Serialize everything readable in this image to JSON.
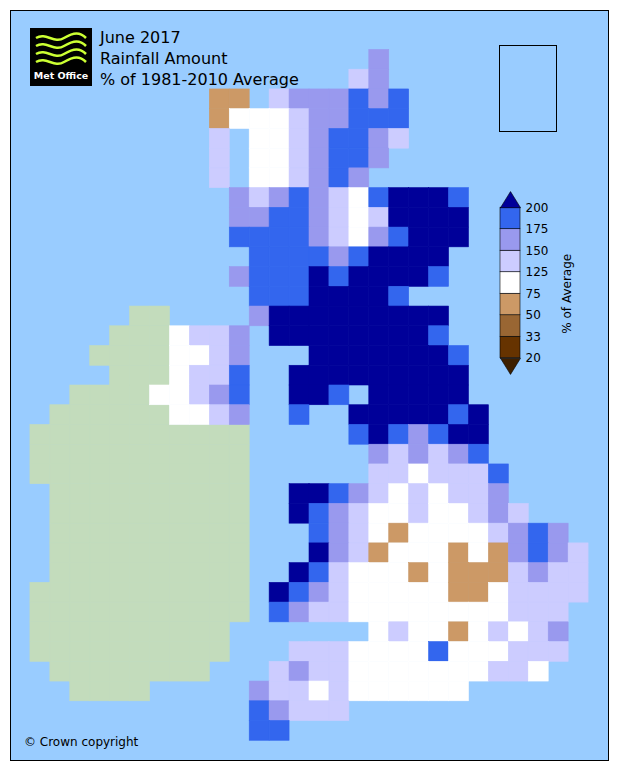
{
  "chart_data": {
    "type": "heatmap",
    "title": "June 2017",
    "subtitle": [
      "Rainfall Amount",
      "% of 1981-2010 Average"
    ],
    "logo": "Met Office",
    "credit": "© Crown copyright",
    "xlim": [
      0,
      30
    ],
    "ylim": [
      0,
      38
    ],
    "tick_labels": false,
    "colorbar": {
      "label": "% of Average",
      "ticks": [
        20,
        33,
        50,
        75,
        125,
        150,
        175,
        200
      ],
      "colors": [
        "#3d1f00",
        "#663300",
        "#996633",
        "#cc9966",
        "#ffffff",
        "#ccccff",
        "#9999ee",
        "#3366ee",
        "#000099"
      ]
    },
    "cells": [
      [
        2,
        18,
        [
          160
        ]
      ],
      [
        3,
        17,
        [
          135,
          160
        ]
      ],
      [
        4,
        10,
        [
          60,
          60,
          null,
          135,
          160,
          160,
          160,
          185,
          160,
          185
        ]
      ],
      [
        5,
        10,
        [
          60,
          100,
          100,
          100,
          135,
          160,
          160,
          185,
          185,
          185
        ]
      ],
      [
        6,
        10,
        [
          135,
          null,
          100,
          100,
          135,
          160,
          185,
          185,
          160,
          135
        ]
      ],
      [
        7,
        10,
        [
          135,
          null,
          100,
          100,
          135,
          160,
          185,
          185,
          160
        ]
      ],
      [
        8,
        10,
        [
          135,
          null,
          100,
          100,
          135,
          160,
          185,
          160
        ]
      ],
      [
        9,
        11,
        [
          160,
          135,
          160,
          185,
          160,
          135,
          100,
          185,
          210,
          210,
          210,
          185
        ]
      ],
      [
        10,
        11,
        [
          160,
          160,
          185,
          185,
          160,
          135,
          100,
          135,
          210,
          210,
          210,
          210
        ]
      ],
      [
        11,
        11,
        [
          185,
          185,
          185,
          185,
          160,
          135,
          100,
          160,
          185,
          210,
          210,
          210
        ]
      ],
      [
        12,
        12,
        [
          185,
          185,
          185,
          185,
          160,
          185,
          210,
          210,
          210,
          210
        ]
      ],
      [
        13,
        11,
        [
          160,
          185,
          185,
          185,
          210,
          185,
          210,
          210,
          210,
          210,
          185
        ]
      ],
      [
        14,
        12,
        [
          185,
          185,
          185,
          210,
          210,
          210,
          210,
          185
        ]
      ],
      [
        15,
        12,
        [
          160,
          210,
          210,
          210,
          210,
          210,
          210,
          210,
          210,
          210
        ]
      ],
      [
        16,
        8,
        [
          100,
          135,
          135,
          160,
          null,
          210,
          210,
          210,
          210,
          210,
          210,
          210,
          210,
          185
        ]
      ],
      [
        17,
        8,
        [
          100,
          100,
          135,
          160,
          null,
          null,
          null,
          210,
          210,
          210,
          210,
          210,
          210,
          210,
          185
        ]
      ],
      [
        18,
        8,
        [
          100,
          135,
          135,
          185,
          null,
          null,
          210,
          210,
          210,
          210,
          210,
          210,
          210,
          210,
          210
        ]
      ],
      [
        19,
        7,
        [
          100,
          100,
          135,
          160,
          185,
          null,
          null,
          210,
          210,
          185,
          null,
          210,
          210,
          210,
          210,
          210
        ]
      ],
      [
        20,
        8,
        [
          100,
          100,
          135,
          160,
          null,
          null,
          185,
          null,
          null,
          210,
          210,
          210,
          210,
          210,
          185,
          210
        ]
      ],
      [
        21,
        17,
        [
          185,
          210,
          185,
          160,
          185,
          210,
          210
        ]
      ],
      [
        22,
        18,
        [
          160,
          135,
          160,
          135,
          160,
          185
        ]
      ],
      [
        23,
        18,
        [
          135,
          135,
          100,
          135,
          135,
          135,
          185
        ]
      ],
      [
        24,
        14,
        [
          210,
          210,
          185,
          160,
          135,
          100,
          135,
          100,
          135,
          135,
          160
        ]
      ],
      [
        25,
        14,
        [
          210,
          185,
          160,
          135,
          100,
          100,
          135,
          100,
          100,
          135,
          160,
          135
        ]
      ],
      [
        26,
        15,
        [
          185,
          160,
          135,
          100,
          60,
          100,
          100,
          100,
          100,
          135,
          160,
          185,
          160
        ]
      ],
      [
        27,
        15,
        [
          210,
          160,
          135,
          60,
          100,
          100,
          100,
          60,
          100,
          60,
          160,
          185,
          160,
          135
        ]
      ],
      [
        28,
        14,
        [
          210,
          185,
          135,
          100,
          100,
          100,
          60,
          100,
          60,
          60,
          60,
          135,
          160,
          135,
          135
        ]
      ],
      [
        29,
        13,
        [
          210,
          185,
          160,
          135,
          100,
          100,
          100,
          100,
          100,
          60,
          60,
          100,
          135,
          135,
          135,
          135
        ]
      ],
      [
        30,
        13,
        [
          185,
          160,
          135,
          135,
          100,
          100,
          100,
          100,
          100,
          100,
          100,
          100,
          135,
          135,
          135
        ]
      ],
      [
        31,
        18,
        [
          100,
          135,
          100,
          100,
          60,
          100,
          135,
          100,
          135,
          160
        ]
      ],
      [
        32,
        14,
        [
          135,
          135,
          135,
          100,
          100,
          100,
          100,
          185,
          100,
          100,
          100,
          135,
          135,
          135
        ]
      ],
      [
        33,
        13,
        [
          135,
          160,
          135,
          135,
          100,
          100,
          100,
          100,
          100,
          100,
          100,
          135,
          135,
          100
        ]
      ],
      [
        34,
        12,
        [
          160,
          135,
          135,
          100,
          135,
          100,
          100,
          100,
          100,
          100,
          100
        ]
      ],
      [
        35,
        12,
        [
          185,
          160,
          135,
          135,
          135
        ]
      ],
      [
        36,
        12,
        [
          185,
          185
        ]
      ]
    ],
    "no_data_cells": [
      [
        15,
        6,
        7
      ],
      [
        16,
        5,
        7
      ],
      [
        17,
        4,
        7
      ],
      [
        18,
        5,
        7
      ],
      [
        19,
        3,
        6
      ],
      [
        20,
        2,
        7
      ],
      [
        21,
        1,
        11
      ],
      [
        22,
        1,
        11
      ],
      [
        23,
        1,
        11
      ],
      [
        24,
        2,
        11
      ],
      [
        25,
        2,
        11
      ],
      [
        26,
        2,
        11
      ],
      [
        27,
        2,
        11
      ],
      [
        28,
        2,
        11
      ],
      [
        29,
        1,
        11
      ],
      [
        30,
        1,
        11
      ],
      [
        31,
        1,
        10
      ],
      [
        32,
        1,
        10
      ],
      [
        33,
        2,
        9
      ],
      [
        34,
        3,
        6
      ]
    ]
  }
}
